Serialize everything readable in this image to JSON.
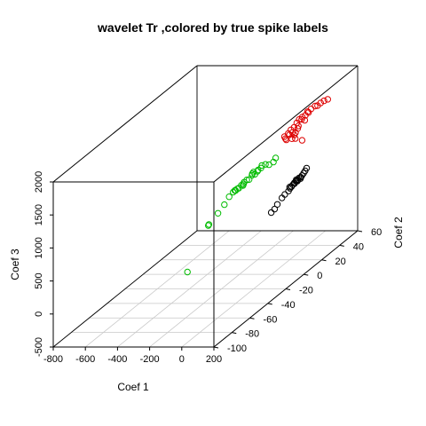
{
  "chart_data": {
    "type": "scatter",
    "title": "wavelet Tr ,colored by true spike labels",
    "xlabel": "Coef 1",
    "ylabel": "Coef 2",
    "zlabel": "Coef 3",
    "xlim": [
      -800,
      200
    ],
    "ylim": [
      -100,
      60
    ],
    "zlim": [
      -500,
      2000
    ],
    "x_ticks": [
      "-800",
      "-600",
      "-400",
      "-200",
      "0",
      "200"
    ],
    "y_ticks": [
      "-100",
      "-80",
      "-60",
      "-40",
      "-20",
      "0",
      "20",
      "40",
      "60"
    ],
    "z_ticks": [
      "-500",
      "0",
      "500",
      "1000",
      "1500",
      "2000"
    ],
    "grid": "floor",
    "colors": {
      "red": "#dd0000",
      "black": "#000000",
      "green": "#00bb00"
    },
    "series": [
      {
        "color": "red",
        "points": [
          [
            42,
            55,
            1545
          ],
          [
            30,
            53,
            1545
          ],
          [
            20,
            51,
            1535
          ],
          [
            6,
            50,
            1505
          ],
          [
            2,
            48,
            1520
          ],
          [
            -12,
            46,
            1500
          ],
          [
            -22,
            44,
            1480
          ],
          [
            -28,
            46,
            1445
          ],
          [
            -36,
            44,
            1425
          ],
          [
            -44,
            42,
            1420
          ],
          [
            -52,
            40,
            1405
          ],
          [
            -48,
            42,
            1385
          ],
          [
            -40,
            44,
            1350
          ],
          [
            -62,
            36,
            1330
          ],
          [
            -56,
            38,
            1375
          ],
          [
            -70,
            34,
            1315
          ],
          [
            -76,
            32,
            1280
          ],
          [
            -82,
            30,
            1225
          ],
          [
            -74,
            33,
            1250
          ],
          [
            -66,
            35,
            1265
          ],
          [
            -58,
            37,
            1240
          ],
          [
            -64,
            34,
            1180
          ],
          [
            -50,
            38,
            1290
          ],
          [
            -82,
            31,
            1195
          ],
          [
            -60,
            36,
            1215
          ],
          [
            -88,
            30,
            1255
          ],
          [
            -34,
            40,
            1090
          ],
          [
            -46,
            38,
            1330
          ],
          [
            -54,
            36,
            1160
          ]
        ]
      },
      {
        "color": "black",
        "points": [
          [
            -28,
            44,
            625
          ],
          [
            -32,
            43,
            595
          ],
          [
            -36,
            42,
            570
          ],
          [
            -40,
            41,
            545
          ],
          [
            -42,
            40,
            530
          ],
          [
            -44,
            40,
            510
          ],
          [
            -48,
            39,
            530
          ],
          [
            -50,
            38,
            510
          ],
          [
            -52,
            38,
            495
          ],
          [
            -54,
            37,
            525
          ],
          [
            -56,
            37,
            505
          ],
          [
            -58,
            36,
            480
          ],
          [
            -60,
            36,
            490
          ],
          [
            -64,
            35,
            470
          ],
          [
            -66,
            34,
            455
          ],
          [
            -70,
            33,
            440
          ],
          [
            -74,
            32,
            410
          ],
          [
            -72,
            33,
            460
          ],
          [
            -86,
            30,
            380
          ],
          [
            -92,
            28,
            350
          ],
          [
            -104,
            25,
            285
          ],
          [
            -120,
            21,
            205
          ],
          [
            -110,
            23,
            235
          ]
        ]
      },
      {
        "color": "green",
        "points": [
          [
            -210,
            42,
            800
          ],
          [
            -218,
            41,
            750
          ],
          [
            -240,
            40,
            720
          ],
          [
            -262,
            40,
            725
          ],
          [
            -284,
            40,
            710
          ],
          [
            -290,
            40,
            670
          ],
          [
            -308,
            40,
            640
          ],
          [
            -312,
            40,
            620
          ],
          [
            -328,
            40,
            575
          ],
          [
            -336,
            40,
            610
          ],
          [
            -346,
            40,
            560
          ],
          [
            -364,
            40,
            495
          ],
          [
            -378,
            40,
            490
          ],
          [
            -398,
            40,
            430
          ],
          [
            -402,
            40,
            405
          ],
          [
            -428,
            40,
            365
          ],
          [
            -438,
            40,
            355
          ],
          [
            -453,
            40,
            330
          ],
          [
            -412,
            40,
            410
          ],
          [
            -344,
            40,
            585
          ],
          [
            -395,
            40,
            455
          ],
          [
            -448,
            40,
            330
          ],
          [
            -463,
            40,
            305
          ],
          [
            -488,
            40,
            235
          ],
          [
            -518,
            40,
            115
          ],
          [
            -558,
            40,
            -15
          ],
          [
            -614,
            40,
            -185
          ],
          [
            -618,
            40,
            -200
          ],
          [
            -748,
            40,
            -905
          ]
        ]
      }
    ]
  }
}
